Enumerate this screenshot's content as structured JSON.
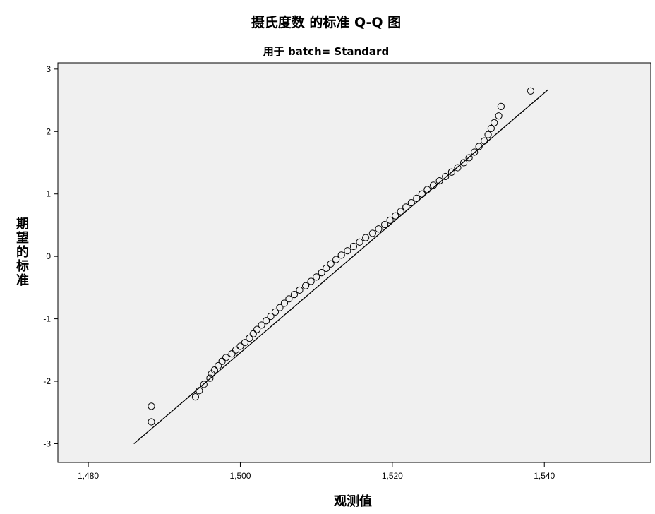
{
  "chart_data": {
    "type": "scatter",
    "title": "摄氏度数 的标准 Q-Q 图",
    "subtitle": "用于 batch= Standard",
    "xlabel": "观测值",
    "ylabel": "期望的标准",
    "xlim": [
      1476,
      1554
    ],
    "ylim": [
      -3.3,
      3.1
    ],
    "x_ticks": [
      1480,
      1500,
      1520,
      1540
    ],
    "x_tick_labels": [
      "1,480",
      "1,500",
      "1,520",
      "1,540"
    ],
    "y_ticks": [
      3,
      2,
      1,
      0,
      -1,
      -2,
      -3
    ],
    "y_tick_labels": [
      "3",
      "2",
      "1",
      "0",
      "-1",
      "-2",
      "-3"
    ],
    "grid": false,
    "legend": "none",
    "reference_line": {
      "x": [
        1486.0,
        1540.5
      ],
      "y": [
        -3.0,
        2.67
      ]
    },
    "series": [
      {
        "marker": "open-circle",
        "x": [
          1488.3,
          1488.3,
          1494.1,
          1494.6,
          1495.2,
          1496.0,
          1496.2,
          1496.6,
          1497.1,
          1497.6,
          1498.1,
          1498.9,
          1499.4,
          1500.0,
          1500.6,
          1501.2,
          1501.7,
          1502.2,
          1502.8,
          1503.4,
          1504.0,
          1504.6,
          1505.2,
          1505.8,
          1506.4,
          1507.1,
          1507.8,
          1508.6,
          1509.3,
          1510.0,
          1510.7,
          1511.3,
          1511.9,
          1512.6,
          1513.3,
          1514.1,
          1514.9,
          1515.7,
          1516.5,
          1517.4,
          1518.2,
          1519.0,
          1519.7,
          1520.4,
          1521.1,
          1521.8,
          1522.5,
          1523.2,
          1523.9,
          1524.6,
          1525.4,
          1526.2,
          1527.0,
          1527.8,
          1528.6,
          1529.4,
          1530.1,
          1530.8,
          1531.4,
          1532.1,
          1532.6,
          1533.0,
          1533.4,
          1534.0,
          1534.3,
          1538.2
        ],
        "y": [
          -2.65,
          -2.4,
          -2.25,
          -2.15,
          -2.05,
          -1.95,
          -1.88,
          -1.82,
          -1.75,
          -1.68,
          -1.62,
          -1.56,
          -1.5,
          -1.44,
          -1.38,
          -1.31,
          -1.24,
          -1.17,
          -1.1,
          -1.03,
          -0.96,
          -0.89,
          -0.82,
          -0.75,
          -0.68,
          -0.61,
          -0.54,
          -0.47,
          -0.4,
          -0.33,
          -0.26,
          -0.19,
          -0.12,
          -0.05,
          0.02,
          0.09,
          0.16,
          0.23,
          0.3,
          0.37,
          0.44,
          0.51,
          0.58,
          0.65,
          0.72,
          0.79,
          0.86,
          0.93,
          1.0,
          1.07,
          1.14,
          1.21,
          1.28,
          1.35,
          1.42,
          1.5,
          1.58,
          1.67,
          1.76,
          1.85,
          1.95,
          2.05,
          2.14,
          2.25,
          2.4,
          2.65
        ]
      }
    ]
  }
}
